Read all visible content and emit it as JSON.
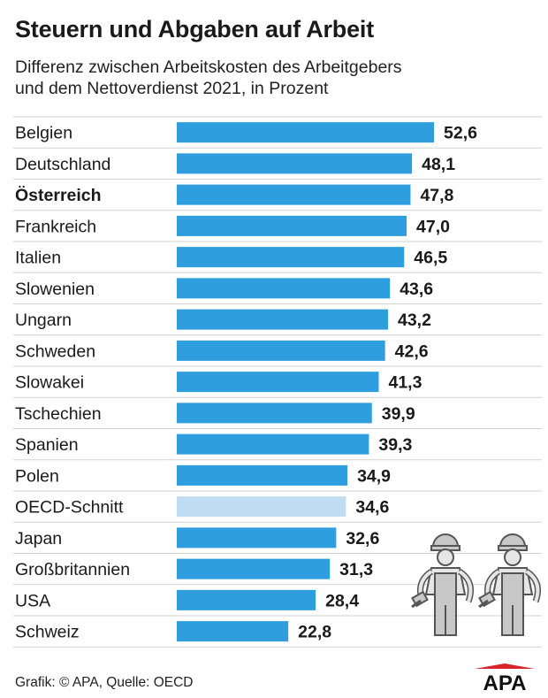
{
  "title": "Steuern und Abgaben auf Arbeit",
  "subtitle_line1": "Differenz zwischen Arbeitskosten des Arbeitgebers",
  "subtitle_line2": "und dem Nettoverdienst 2021, in Prozent",
  "footer": "Grafik: © APA, Quelle: OECD",
  "logo_text": "APA",
  "colors": {
    "bar": "#2f9ede",
    "bar_highlight": "#bfdcf3",
    "divider": "#d2d2d2",
    "logo_red": "#d8232a"
  },
  "chart_data": {
    "type": "bar",
    "orientation": "horizontal",
    "categories": [
      "Belgien",
      "Deutschland",
      "Österreich",
      "Frankreich",
      "Italien",
      "Slowenien",
      "Ungarn",
      "Schweden",
      "Slowakei",
      "Tschechien",
      "Spanien",
      "Polen",
      "OECD-Schnitt",
      "Japan",
      "Großbritannien",
      "USA",
      "Schweiz"
    ],
    "values": [
      52.6,
      48.1,
      47.8,
      47.0,
      46.5,
      43.6,
      43.2,
      42.6,
      41.3,
      39.9,
      39.3,
      34.9,
      34.6,
      32.6,
      31.3,
      28.4,
      22.8
    ],
    "value_labels": [
      "52,6",
      "48,1",
      "47,8",
      "47,0",
      "46,5",
      "43,6",
      "43,2",
      "42,6",
      "41,3",
      "39,9",
      "39,3",
      "34,9",
      "34,6",
      "32,6",
      "31,3",
      "28,4",
      "22,8"
    ],
    "bold_category": "Österreich",
    "highlight_category": "OECD-Schnitt",
    "xlim": [
      0,
      52.6
    ],
    "grid": false
  }
}
